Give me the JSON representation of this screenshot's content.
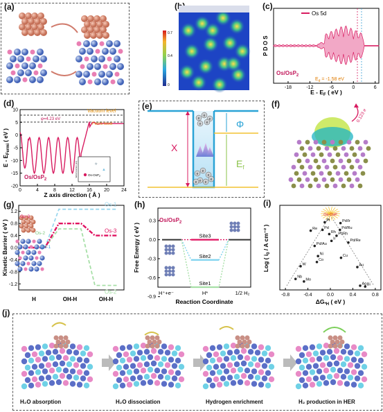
{
  "panels": {
    "a": {
      "label": "(a)"
    },
    "b": {
      "label": "(b)",
      "colorbar": {
        "max": "0.7",
        "mid": "0.4",
        "min": "0"
      }
    },
    "c": {
      "label": "(c)",
      "legend": "Os 5d",
      "ylabel": "P D O S",
      "xlabel": "E - E",
      "xlabel_sub": "F",
      "xlabel_unit": " ( eV )",
      "sample": "Os/OsP",
      "sample_sub": "2",
      "ed_label": "E",
      "ed_sub": "d",
      "ed_value": " = -1.58 eV",
      "xticks": [
        "-18",
        "-12",
        "-6",
        "0",
        "6"
      ],
      "colors": {
        "fill": "#f2a8c6",
        "line": "#d81b60"
      }
    },
    "d": {
      "label": "(d)",
      "ylabel": "E - E",
      "ylabel_sub": "Fermi",
      "ylabel_unit": " ( eV )",
      "xlabel": "Z axis direction ( Å )",
      "phi": "φ=4.23 eV",
      "vacuum": "Vacuum level",
      "fermi": "Fermi level",
      "sample": "Os/OsP",
      "sample_sub": "2",
      "xticks": [
        "0",
        "4",
        "8",
        "12",
        "16",
        "20",
        "24"
      ],
      "yticks": [
        "10",
        "5",
        "0",
        "-5",
        "-10",
        "-15",
        "-20"
      ],
      "inset_ylabel": "Work function (eV)",
      "inset_legend": "Os-OsP",
      "inset_legend_sub": "2"
    },
    "e": {
      "label": "(e)",
      "chi": "X",
      "phi": "Φ",
      "ef": "E",
      "ef_sub": "f"
    },
    "f": {
      "label": "(f)",
      "value": "0.123 e"
    },
    "g": {
      "label": "(g)",
      "ylabel": "Kinetic  Barrier  ( eV )",
      "yticks": [
        "1.2",
        "0.8",
        "0.4",
        "0.0",
        "-0.4",
        "-0.8",
        "-1.2"
      ],
      "xcats": [
        "H",
        "OH-H",
        "OH-H"
      ],
      "xcat_suffix": [
        "O",
        "",
        "-H"
      ],
      "series": [
        {
          "name": "Os-1",
          "color": "#9bd7ee"
        },
        {
          "name": "Os-2",
          "color": "#a6dfa6"
        },
        {
          "name": "Os-3",
          "color": "#e0115f"
        }
      ],
      "inset_labels": [
        "Os-3",
        "Os-2",
        "Os-1"
      ]
    },
    "h": {
      "label": "(h)",
      "ylabel": "Free Energy  ( eV )",
      "xlabel": "Reaction Coordinate",
      "sample": "Os/OsP",
      "sample_sub": "2",
      "yticks": [
        "0.3",
        "0.0",
        "-0.3",
        "-0.6",
        "-0.9"
      ],
      "xcats": [
        "H⁺+e⁻",
        "H*",
        "1/2 H₂"
      ],
      "sites": [
        "Site3",
        "Site2",
        "Site1"
      ]
    },
    "i": {
      "label": "(i)",
      "ylabel": "Log ( i",
      "ylabel_sub": "0",
      "ylabel_unit": " / A cm⁻² )",
      "xlabel": "ΔG",
      "xlabel_sub": "*H",
      "xlabel_unit": " ( eV )",
      "xticks": [
        "-0.8",
        "-0.4",
        "0.0",
        "0.4",
        "0.8"
      ],
      "highlight": "Os-OsP",
      "points": [
        {
          "name": "Re",
          "x": -0.35,
          "y": 0.7
        },
        {
          "name": "Pd",
          "x": -0.14,
          "y": 0.71
        },
        {
          "name": "Rh",
          "x": -0.02,
          "y": 0.66
        },
        {
          "name": "Pt",
          "x": -0.1,
          "y": 0.8
        },
        {
          "name": "Ir",
          "x": 0.02,
          "y": 0.58
        },
        {
          "name": "Pd/Ir",
          "x": 0.18,
          "y": 0.79
        },
        {
          "name": "Pd/Ru",
          "x": 0.17,
          "y": 0.71
        },
        {
          "name": "Pt/Rh",
          "x": 0.11,
          "y": 0.64
        },
        {
          "name": "Pd/Au",
          "x": -0.28,
          "y": 0.52
        },
        {
          "name": "Pd/Re",
          "x": 0.32,
          "y": 0.56
        },
        {
          "name": "Ni",
          "x": -0.22,
          "y": 0.4
        },
        {
          "name": "Co",
          "x": -0.24,
          "y": 0.33
        },
        {
          "name": "Cu",
          "x": 0.19,
          "y": 0.38
        },
        {
          "name": "W",
          "x": -0.53,
          "y": 0.28
        },
        {
          "name": "Mo",
          "x": -0.47,
          "y": 0.1
        },
        {
          "name": "Nb",
          "x": -0.62,
          "y": 0.13
        },
        {
          "name": "Au",
          "x": 0.48,
          "y": 0.27
        },
        {
          "name": "Ag",
          "x": 0.53,
          "y": 0.05
        },
        {
          "name": "Bi",
          "x": 0.62,
          "y": 0.04
        }
      ]
    },
    "j": {
      "label": "(j)",
      "steps": [
        "H₂O absorption",
        "H₂O dissociation",
        "Hydrogen enrichment",
        "H₂ production in HER"
      ]
    }
  }
}
